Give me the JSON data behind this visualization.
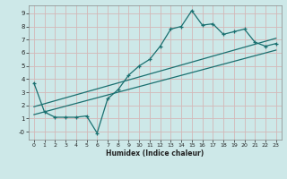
{
  "xlabel": "Humidex (Indice chaleur)",
  "background_color": "#cde8e8",
  "grid_color": "#c0d4d4",
  "line_color": "#1a7070",
  "xlim": [
    -0.5,
    23.5
  ],
  "ylim": [
    -0.6,
    9.6
  ],
  "xticks": [
    0,
    1,
    2,
    3,
    4,
    5,
    6,
    7,
    8,
    9,
    10,
    11,
    12,
    13,
    14,
    15,
    16,
    17,
    18,
    19,
    20,
    21,
    22,
    23
  ],
  "yticks": [
    0,
    1,
    2,
    3,
    4,
    5,
    6,
    7,
    8,
    9
  ],
  "ytick_labels": [
    "-0",
    "1",
    "2",
    "3",
    "4",
    "5",
    "6",
    "7",
    "8",
    "9"
  ],
  "curve_x": [
    0,
    1,
    2,
    3,
    4,
    5,
    6,
    7,
    8,
    9,
    10,
    11,
    12,
    13,
    14,
    15,
    16,
    17,
    18,
    19,
    20,
    21,
    22,
    23
  ],
  "curve_y": [
    3.7,
    1.5,
    1.1,
    1.1,
    1.1,
    1.2,
    -0.1,
    2.5,
    3.2,
    4.3,
    5.0,
    5.5,
    6.5,
    7.8,
    8.0,
    9.2,
    8.1,
    8.2,
    7.4,
    7.6,
    7.8,
    6.8,
    6.5,
    6.7
  ],
  "line1_x": [
    0,
    23
  ],
  "line1_y": [
    1.3,
    6.2
  ],
  "line2_x": [
    0,
    23
  ],
  "line2_y": [
    1.9,
    7.1
  ]
}
